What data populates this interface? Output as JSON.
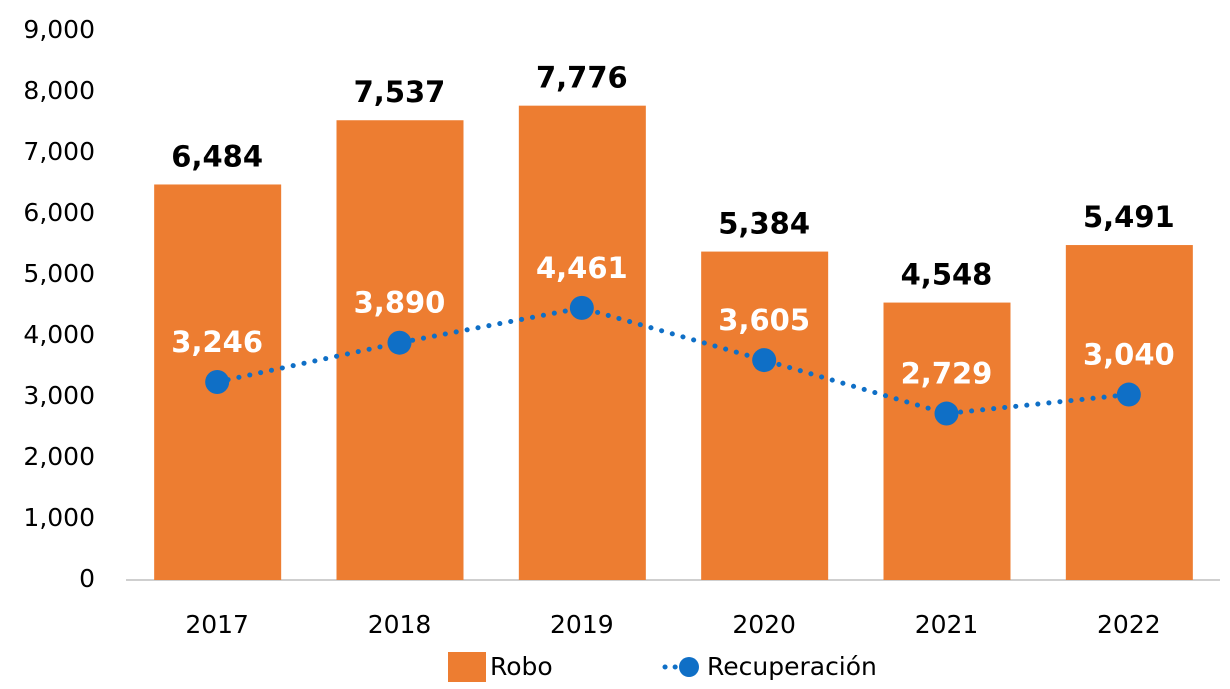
{
  "chart_data": {
    "type": "bar",
    "categories": [
      "2017",
      "2018",
      "2019",
      "2020",
      "2021",
      "2022"
    ],
    "series": [
      {
        "name": "Robo",
        "type": "bar",
        "color": "#ed7d31",
        "values": [
          6484,
          7537,
          7776,
          5384,
          4548,
          5491
        ],
        "value_labels": [
          "6,484",
          "7,537",
          "7,776",
          "5,384",
          "4,548",
          "5,491"
        ]
      },
      {
        "name": "Recuperación",
        "type": "line",
        "color": "#0f6fc6",
        "values": [
          3246,
          3890,
          4461,
          3605,
          2729,
          3040
        ],
        "value_labels": [
          "3,246",
          "3,890",
          "4,461",
          "3,605",
          "2,729",
          "3,040"
        ]
      }
    ],
    "ylim": [
      0,
      9000
    ],
    "yticks": [
      0,
      {
        "value": 1000,
        "label": "1,000"
      },
      {
        "value": 2000,
        "label": "2,000"
      },
      {
        "value": 3000,
        "label": "3,000"
      },
      {
        "value": 4000,
        "label": "4,000"
      },
      {
        "value": 5000,
        "label": "5,000"
      },
      {
        "value": 6000,
        "label": "6,000"
      },
      {
        "value": 7000,
        "label": "7,000"
      },
      {
        "value": 8000,
        "label": "8,000"
      },
      {
        "value": 9000,
        "label": "9,000"
      }
    ],
    "grid": false,
    "legend": "bottom"
  }
}
